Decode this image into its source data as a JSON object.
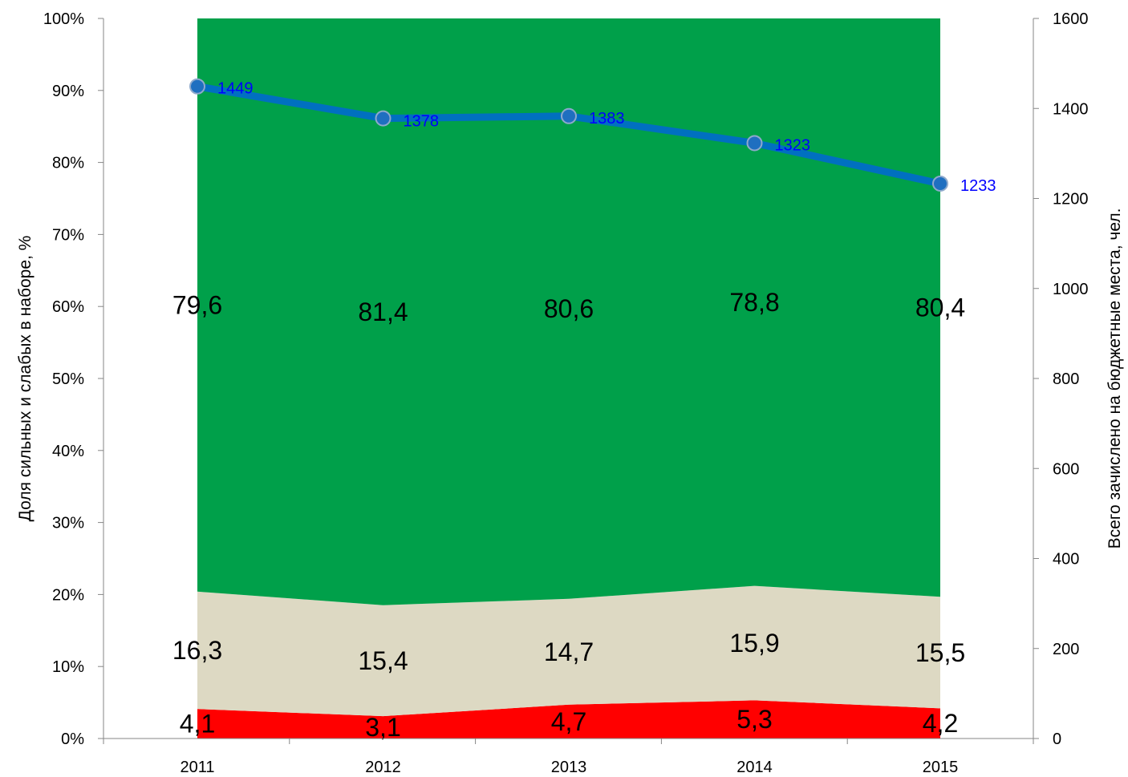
{
  "chart_data": {
    "type": "area",
    "categories": [
      "2011",
      "2012",
      "2013",
      "2014",
      "2015"
    ],
    "stacked_percent": true,
    "series": [
      {
        "values": [
          4.1,
          3.1,
          4.7,
          5.3,
          4.2
        ],
        "labels": [
          "4,1",
          "3,1",
          "4,7",
          "5,3",
          "4,2"
        ],
        "color": "#ff0000"
      },
      {
        "values": [
          16.3,
          15.4,
          14.7,
          15.9,
          15.5
        ],
        "labels": [
          "16,3",
          "15,4",
          "14,7",
          "15,9",
          "15,5"
        ],
        "color": "#ddd9c3"
      },
      {
        "values": [
          79.6,
          81.4,
          80.6,
          78.8,
          80.4
        ],
        "labels": [
          "79,6",
          "81,4",
          "80,6",
          "78,8",
          "80,4"
        ],
        "color": "#00a04a"
      }
    ],
    "line_series": {
      "axis": "secondary",
      "values": [
        1449,
        1378,
        1383,
        1323,
        1233
      ],
      "labels": [
        "1449",
        "1378",
        "1383",
        "1323",
        "1233"
      ],
      "line_color": "#0070c0",
      "label_color": "#0000ff"
    },
    "y_left": {
      "label": "Доля сильных и слабых в наборе, %",
      "ticks": [
        "0%",
        "10%",
        "20%",
        "30%",
        "40%",
        "50%",
        "60%",
        "70%",
        "80%",
        "90%",
        "100%"
      ],
      "ylim": [
        0,
        100
      ]
    },
    "y_right": {
      "label": "Всего зачислено на бюджетные места, чел.",
      "ticks": [
        "0",
        "200",
        "400",
        "600",
        "800",
        "1000",
        "1200",
        "1400",
        "1600"
      ],
      "ylim": [
        0,
        1600
      ]
    },
    "grid": false,
    "legend": "none"
  }
}
